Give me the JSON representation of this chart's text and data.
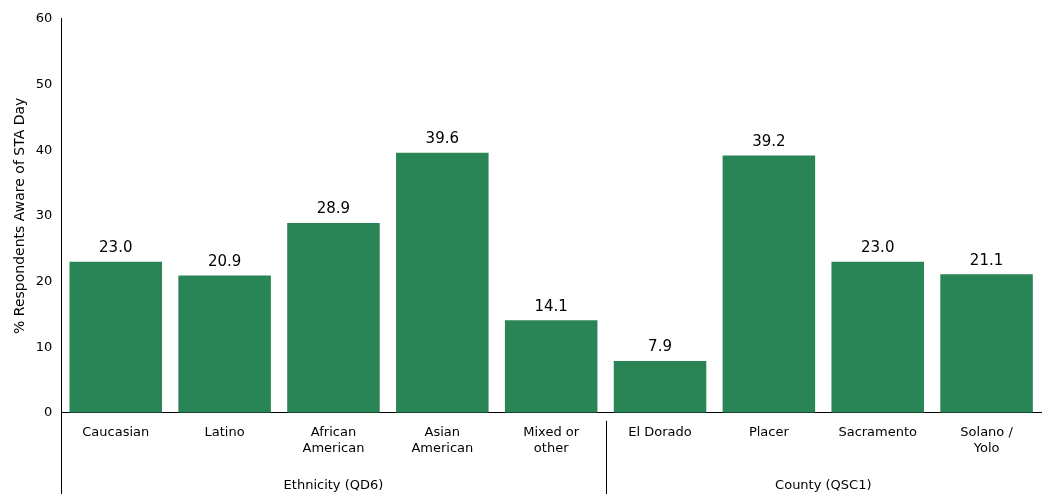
{
  "chart_data": {
    "type": "bar",
    "ylabel": "% Respondents Aware of STA Day",
    "categories": [
      "Caucasian",
      "Latino",
      "African American",
      "Asian American",
      "Mixed or other",
      "El Dorado",
      "Placer",
      "Sacramento",
      "Solano / Yolo"
    ],
    "values": [
      23.0,
      20.9,
      28.9,
      39.6,
      14.1,
      7.9,
      39.2,
      23.0,
      21.1
    ],
    "color": "#2a8556",
    "value_labels": [
      "23.0",
      "20.9",
      "28.9",
      "39.6",
      "14.1",
      "7.9",
      "39.2",
      "23.0",
      "21.1"
    ],
    "ylim": [
      0,
      60
    ],
    "yticks": [
      0,
      10,
      20,
      30,
      40,
      50,
      60
    ],
    "grid": false,
    "legend": false,
    "annotations": [
      "Ethnicity (QD6)",
      "County (QSC1)"
    ]
  }
}
